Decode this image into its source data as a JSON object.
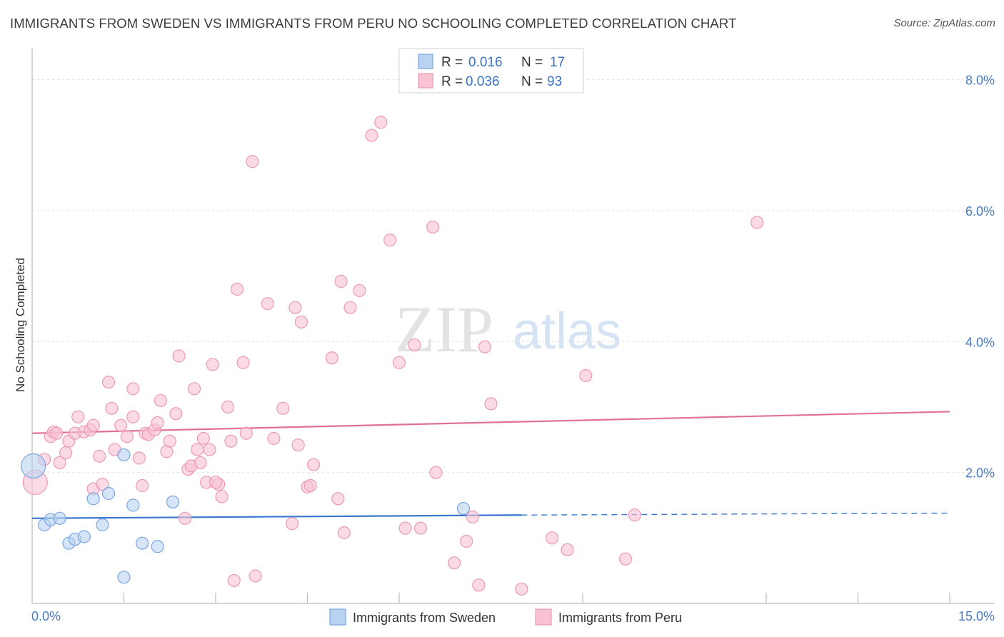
{
  "title": "IMMIGRANTS FROM SWEDEN VS IMMIGRANTS FROM PERU NO SCHOOLING COMPLETED CORRELATION CHART",
  "source": "Source: ZipAtlas.com",
  "colors": {
    "sweden_fill": "#b9d2f2",
    "sweden_stroke": "#7aa6e0",
    "sweden_line": "#3a78cf",
    "peru_fill": "#f8c2d3",
    "peru_stroke": "#ec99b6",
    "peru_line": "#e0709a",
    "tick_label": "#4a7cc0",
    "grid": "#dddddd"
  },
  "legend": {
    "rows": [
      {
        "r_label": "R =",
        "r_value": "0.016",
        "n_label": "N =",
        "n_value": "17",
        "series": "sweden"
      },
      {
        "r_label": "R =",
        "r_value": "0.036",
        "n_label": "N =",
        "n_value": "93",
        "series": "peru"
      }
    ]
  },
  "watermark": {
    "zip": "ZIP",
    "atlas": "atlas"
  },
  "chart_data": {
    "type": "scatter",
    "title": "IMMIGRANTS FROM SWEDEN VS IMMIGRANTS FROM PERU NO SCHOOLING COMPLETED CORRELATION CHART",
    "xlabel": "",
    "ylabel": "No Schooling Completed",
    "xlim": [
      0,
      15
    ],
    "ylim": [
      0,
      8.4
    ],
    "x_tick_labels": [
      {
        "value": 0,
        "label": "0.0%"
      },
      {
        "value": 15,
        "label": "15.0%"
      }
    ],
    "y_tick_labels": [
      {
        "value": 2,
        "label": "2.0%"
      },
      {
        "value": 4,
        "label": "4.0%"
      },
      {
        "value": 6,
        "label": "6.0%"
      },
      {
        "value": 8,
        "label": "8.0%"
      }
    ],
    "x_minor_ticks": [
      1.5,
      3,
      4.5,
      6,
      9,
      12,
      13.5,
      15
    ],
    "grid": true,
    "legend_position": "top-center",
    "series": [
      {
        "name": "Immigrants from Sweden",
        "key": "sweden",
        "trend": {
          "x0": 0,
          "y0": 1.3,
          "x1": 8,
          "y1": 1.35,
          "dashed_to_x": 15,
          "dashed_y": 1.38
        },
        "points": [
          [
            0.02,
            2.1
          ],
          [
            0.2,
            1.2
          ],
          [
            0.3,
            1.28
          ],
          [
            0.45,
            1.3
          ],
          [
            0.6,
            0.92
          ],
          [
            0.7,
            0.98
          ],
          [
            0.85,
            1.02
          ],
          [
            1.0,
            1.6
          ],
          [
            1.15,
            1.2
          ],
          [
            1.25,
            1.68
          ],
          [
            1.5,
            2.27
          ],
          [
            1.5,
            0.4
          ],
          [
            1.65,
            1.5
          ],
          [
            1.8,
            0.92
          ],
          [
            2.05,
            0.87
          ],
          [
            2.3,
            1.55
          ],
          [
            7.05,
            1.45
          ]
        ]
      },
      {
        "name": "Immigrants from Peru",
        "key": "peru",
        "trend": {
          "x0": 0,
          "y0": 2.6,
          "x1": 15,
          "y1": 2.93
        },
        "points": [
          [
            0.05,
            1.85
          ],
          [
            0.2,
            2.2
          ],
          [
            0.3,
            2.55
          ],
          [
            0.35,
            2.62
          ],
          [
            0.4,
            2.6
          ],
          [
            0.45,
            2.15
          ],
          [
            0.55,
            2.3
          ],
          [
            0.6,
            2.48
          ],
          [
            0.7,
            2.6
          ],
          [
            0.75,
            2.85
          ],
          [
            0.85,
            2.62
          ],
          [
            0.95,
            2.65
          ],
          [
            1.0,
            2.72
          ],
          [
            1.0,
            1.75
          ],
          [
            1.1,
            2.25
          ],
          [
            1.15,
            1.82
          ],
          [
            1.25,
            3.38
          ],
          [
            1.3,
            2.98
          ],
          [
            1.35,
            2.35
          ],
          [
            1.45,
            2.72
          ],
          [
            1.55,
            2.55
          ],
          [
            1.65,
            3.28
          ],
          [
            1.65,
            2.85
          ],
          [
            1.75,
            2.22
          ],
          [
            1.8,
            1.8
          ],
          [
            1.85,
            2.6
          ],
          [
            1.9,
            2.58
          ],
          [
            2.0,
            2.65
          ],
          [
            2.05,
            2.76
          ],
          [
            2.1,
            3.1
          ],
          [
            2.2,
            2.32
          ],
          [
            2.25,
            2.48
          ],
          [
            2.35,
            2.9
          ],
          [
            2.4,
            3.78
          ],
          [
            2.5,
            1.3
          ],
          [
            2.55,
            2.05
          ],
          [
            2.6,
            2.1
          ],
          [
            2.65,
            3.28
          ],
          [
            2.75,
            2.15
          ],
          [
            2.8,
            2.52
          ],
          [
            2.85,
            1.85
          ],
          [
            2.9,
            2.35
          ],
          [
            2.95,
            3.65
          ],
          [
            3.05,
            1.82
          ],
          [
            3.1,
            1.63
          ],
          [
            3.2,
            3.0
          ],
          [
            3.25,
            2.48
          ],
          [
            3.3,
            0.35
          ],
          [
            3.35,
            4.8
          ],
          [
            3.45,
            3.68
          ],
          [
            3.5,
            2.6
          ],
          [
            3.6,
            6.75
          ],
          [
            3.65,
            0.42
          ],
          [
            3.85,
            4.58
          ],
          [
            3.95,
            2.52
          ],
          [
            4.1,
            2.98
          ],
          [
            4.25,
            1.22
          ],
          [
            4.3,
            4.52
          ],
          [
            4.35,
            2.42
          ],
          [
            4.4,
            4.3
          ],
          [
            4.5,
            1.78
          ],
          [
            4.55,
            1.8
          ],
          [
            4.6,
            2.12
          ],
          [
            4.9,
            3.75
          ],
          [
            5.0,
            1.6
          ],
          [
            5.05,
            4.92
          ],
          [
            5.1,
            1.08
          ],
          [
            5.2,
            4.52
          ],
          [
            5.35,
            4.78
          ],
          [
            5.55,
            7.15
          ],
          [
            5.7,
            7.35
          ],
          [
            5.85,
            5.55
          ],
          [
            6.0,
            3.68
          ],
          [
            6.1,
            1.15
          ],
          [
            6.25,
            3.95
          ],
          [
            6.35,
            1.15
          ],
          [
            6.55,
            5.75
          ],
          [
            6.6,
            2.0
          ],
          [
            6.9,
            0.62
          ],
          [
            7.1,
            0.95
          ],
          [
            7.2,
            1.32
          ],
          [
            7.3,
            0.28
          ],
          [
            7.4,
            3.92
          ],
          [
            7.5,
            3.05
          ],
          [
            8.0,
            0.22
          ],
          [
            8.5,
            1.0
          ],
          [
            8.75,
            0.82
          ],
          [
            9.05,
            3.48
          ],
          [
            9.7,
            0.68
          ],
          [
            9.85,
            1.35
          ],
          [
            11.85,
            5.82
          ],
          [
            3.0,
            1.85
          ],
          [
            2.7,
            2.35
          ]
        ]
      }
    ]
  }
}
